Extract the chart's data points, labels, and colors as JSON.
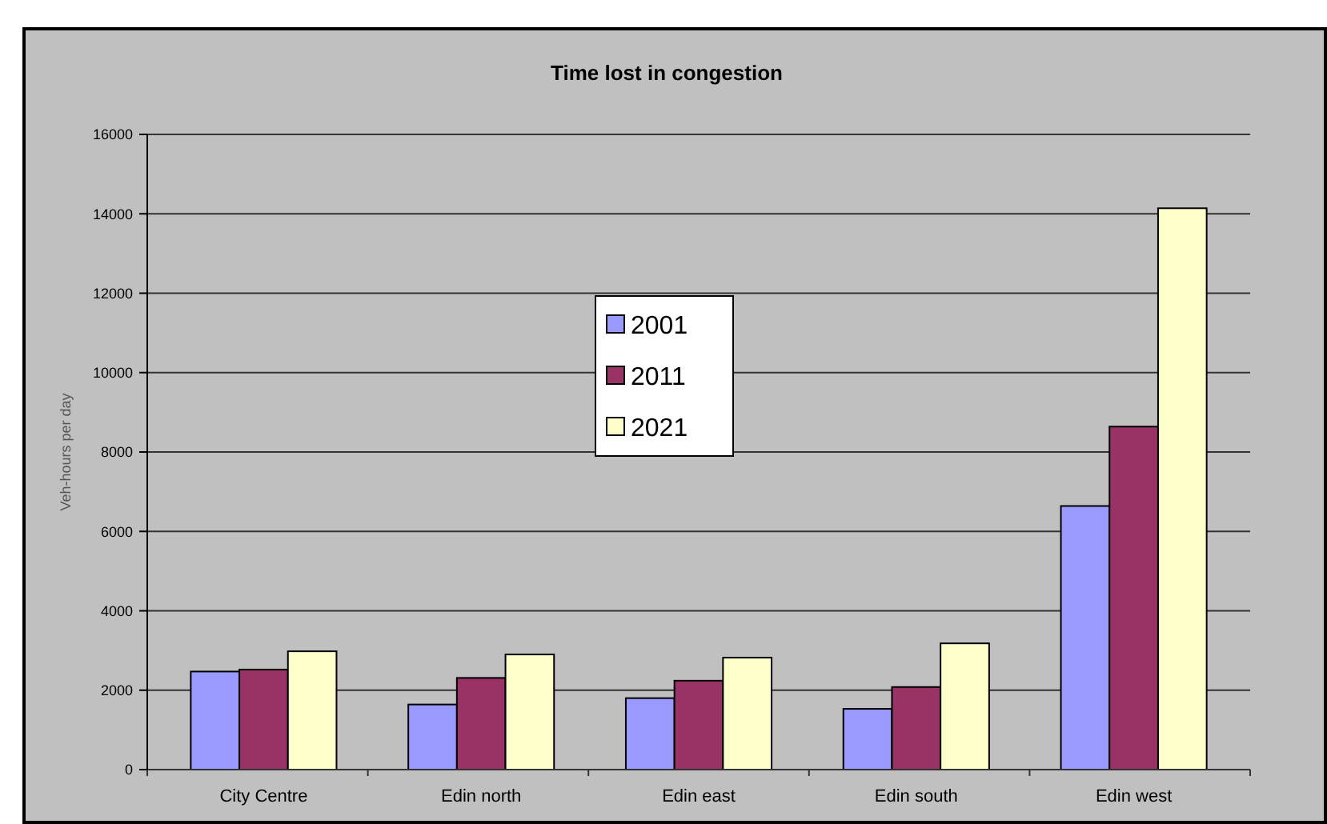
{
  "chart_data": {
    "type": "bar",
    "title": "Time lost in congestion",
    "ylabel": "Veh-hours per day",
    "categories": [
      "City Centre",
      "Edin north",
      "Edin east",
      "Edin south",
      "Edin west"
    ],
    "series": [
      {
        "name": "2001",
        "color": "#9999ff",
        "values": [
          2470,
          1640,
          1800,
          1530,
          6640
        ]
      },
      {
        "name": "2011",
        "color": "#993366",
        "values": [
          2520,
          2310,
          2240,
          2080,
          8640
        ]
      },
      {
        "name": "2021",
        "color": "#ffffcc",
        "values": [
          2980,
          2900,
          2820,
          3180,
          14140
        ]
      }
    ],
    "ylim": [
      0,
      16000
    ],
    "yticks": [
      0,
      2000,
      4000,
      6000,
      8000,
      10000,
      12000,
      14000,
      16000
    ],
    "grid": "y",
    "legend": "center"
  }
}
